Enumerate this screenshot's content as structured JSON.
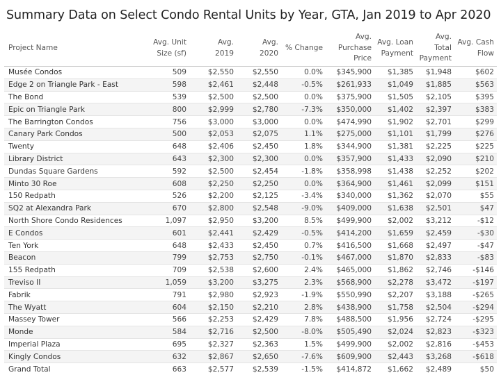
{
  "chart_data": {
    "type": "table",
    "title": "Summary Data on Select Condo Rental Units by Year, GTA, Jan 2019 to Apr 2020",
    "columns": [
      [
        "Project Name"
      ],
      [
        "Avg. Unit",
        "Size (sf)"
      ],
      [
        "Avg.",
        "2019"
      ],
      [
        "Avg.",
        "2020"
      ],
      [
        "% Change"
      ],
      [
        "Avg.",
        "Purchase",
        "Price"
      ],
      [
        "Avg. Loan",
        "Payment"
      ],
      [
        "Avg.",
        "Total",
        "Payment"
      ],
      [
        "Avg. Cash",
        "Flow"
      ]
    ],
    "rows": [
      [
        "Musée Condos",
        "509",
        "$2,550",
        "$2,550",
        "0.0%",
        "$345,900",
        "$1,385",
        "$1,948",
        "$602"
      ],
      [
        "Edge 2 on Triangle Park - East",
        "598",
        "$2,461",
        "$2,448",
        "-0.5%",
        "$261,933",
        "$1,049",
        "$1,885",
        "$563"
      ],
      [
        "The Bond",
        "539",
        "$2,500",
        "$2,500",
        "0.0%",
        "$375,900",
        "$1,505",
        "$2,105",
        "$395"
      ],
      [
        "Epic on Triangle Park",
        "800",
        "$2,999",
        "$2,780",
        "-7.3%",
        "$350,000",
        "$1,402",
        "$2,397",
        "$383"
      ],
      [
        "The Barrington Condos",
        "756",
        "$3,000",
        "$3,000",
        "0.0%",
        "$474,990",
        "$1,902",
        "$2,701",
        "$299"
      ],
      [
        "Canary Park Condos",
        "500",
        "$2,053",
        "$2,075",
        "1.1%",
        "$275,000",
        "$1,101",
        "$1,799",
        "$276"
      ],
      [
        "Twenty",
        "648",
        "$2,406",
        "$2,450",
        "1.8%",
        "$344,900",
        "$1,381",
        "$2,225",
        "$225"
      ],
      [
        "Library District",
        "643",
        "$2,300",
        "$2,300",
        "0.0%",
        "$357,900",
        "$1,433",
        "$2,090",
        "$210"
      ],
      [
        "Dundas Square Gardens",
        "592",
        "$2,500",
        "$2,454",
        "-1.8%",
        "$358,998",
        "$1,438",
        "$2,252",
        "$202"
      ],
      [
        "Minto 30 Roe",
        "608",
        "$2,250",
        "$2,250",
        "0.0%",
        "$364,900",
        "$1,461",
        "$2,099",
        "$151"
      ],
      [
        "150 Redpath",
        "526",
        "$2,200",
        "$2,125",
        "-3.4%",
        "$340,000",
        "$1,362",
        "$2,070",
        "$55"
      ],
      [
        "SQ2 at Alexandra Park",
        "670",
        "$2,800",
        "$2,548",
        "-9.0%",
        "$409,000",
        "$1,638",
        "$2,501",
        "$47"
      ],
      [
        "North Shore Condo Residences",
        "1,097",
        "$2,950",
        "$3,200",
        "8.5%",
        "$499,900",
        "$2,002",
        "$3,212",
        "-$12"
      ],
      [
        "E Condos",
        "601",
        "$2,441",
        "$2,429",
        "-0.5%",
        "$414,200",
        "$1,659",
        "$2,459",
        "-$30"
      ],
      [
        "Ten York",
        "648",
        "$2,433",
        "$2,450",
        "0.7%",
        "$416,500",
        "$1,668",
        "$2,497",
        "-$47"
      ],
      [
        "Beacon",
        "799",
        "$2,753",
        "$2,750",
        "-0.1%",
        "$467,000",
        "$1,870",
        "$2,833",
        "-$83"
      ],
      [
        "155 Redpath",
        "709",
        "$2,538",
        "$2,600",
        "2.4%",
        "$465,000",
        "$1,862",
        "$2,746",
        "-$146"
      ],
      [
        "Treviso II",
        "1,059",
        "$3,200",
        "$3,275",
        "2.3%",
        "$568,900",
        "$2,278",
        "$3,472",
        "-$197"
      ],
      [
        "Fabrik",
        "791",
        "$2,980",
        "$2,923",
        "-1.9%",
        "$550,990",
        "$2,207",
        "$3,188",
        "-$265"
      ],
      [
        "The Wyatt",
        "604",
        "$2,150",
        "$2,210",
        "2.8%",
        "$438,900",
        "$1,758",
        "$2,504",
        "-$294"
      ],
      [
        "Massey Tower",
        "566",
        "$2,253",
        "$2,429",
        "7.8%",
        "$488,500",
        "$1,956",
        "$2,724",
        "-$295"
      ],
      [
        "Monde",
        "584",
        "$2,716",
        "$2,500",
        "-8.0%",
        "$505,490",
        "$2,024",
        "$2,823",
        "-$323"
      ],
      [
        "Imperial Plaza",
        "695",
        "$2,327",
        "$2,363",
        "1.5%",
        "$499,900",
        "$2,002",
        "$2,816",
        "-$453"
      ],
      [
        "Kingly Condos",
        "632",
        "$2,867",
        "$2,650",
        "-7.6%",
        "$609,900",
        "$2,443",
        "$3,268",
        "-$618"
      ]
    ],
    "total": [
      "Grand Total",
      "663",
      "$2,577",
      "$2,539",
      "-1.5%",
      "$414,872",
      "$1,662",
      "$2,489",
      "$50"
    ],
    "colors": {
      "row_band": "#f4f4f4",
      "rule": "#c8c8c8",
      "text": "#444444"
    }
  }
}
